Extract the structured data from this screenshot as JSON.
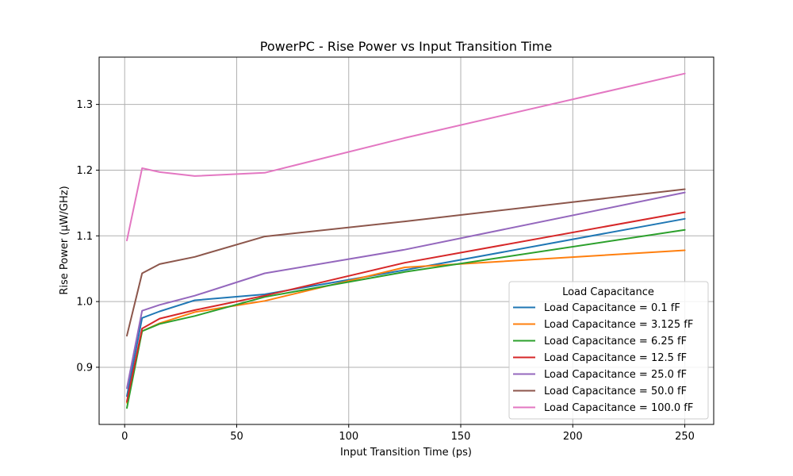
{
  "chart_data": {
    "type": "line",
    "title": "PowerPC - Rise Power vs Input Transition Time",
    "xlabel": "Input Transition Time (ps)",
    "ylabel": "Rise Power (µW/GHz)",
    "xlim": [
      -11.4,
      262.9
    ],
    "ylim": [
      0.813,
      1.372
    ],
    "x_ticks": [
      0,
      50,
      100,
      150,
      200,
      250
    ],
    "x_tick_labels": [
      "0",
      "50",
      "100",
      "150",
      "200",
      "250"
    ],
    "y_ticks": [
      0.9,
      1.0,
      1.1,
      1.2,
      1.3
    ],
    "y_tick_labels": [
      "0.9",
      "1.0",
      "1.1",
      "1.2",
      "1.3"
    ],
    "grid": true,
    "legend": {
      "title": "Load Capacitance",
      "placement": "lower-right"
    },
    "x": [
      1.0,
      7.8,
      15.6,
      31.3,
      62.5,
      125,
      250
    ],
    "series": [
      {
        "name": "Load Capacitance = 0.1 fF",
        "color": "#1f77b4",
        "values": [
          0.856,
          0.975,
          0.985,
          1.002,
          1.011,
          1.048,
          1.126
        ]
      },
      {
        "name": "Load Capacitance = 3.125 fF",
        "color": "#ff7f0e",
        "values": [
          0.846,
          0.955,
          0.967,
          0.984,
          1.001,
          1.052,
          1.078
        ]
      },
      {
        "name": "Load Capacitance = 6.25 fF",
        "color": "#2ca02c",
        "values": [
          0.838,
          0.955,
          0.966,
          0.978,
          1.007,
          1.045,
          1.109
        ]
      },
      {
        "name": "Load Capacitance = 12.5 fF",
        "color": "#d62728",
        "values": [
          0.848,
          0.959,
          0.974,
          0.987,
          1.009,
          1.059,
          1.136
        ]
      },
      {
        "name": "Load Capacitance = 25.0 fF",
        "color": "#9467bd",
        "values": [
          0.868,
          0.986,
          0.995,
          1.009,
          1.043,
          1.079,
          1.166
        ]
      },
      {
        "name": "Load Capacitance = 50.0 fF",
        "color": "#8c564b",
        "values": [
          0.948,
          1.043,
          1.057,
          1.068,
          1.099,
          1.122,
          1.171
        ]
      },
      {
        "name": "Load Capacitance = 100.0 fF",
        "color": "#e377c2",
        "values": [
          1.093,
          1.203,
          1.197,
          1.191,
          1.196,
          1.249,
          1.347
        ]
      }
    ]
  }
}
